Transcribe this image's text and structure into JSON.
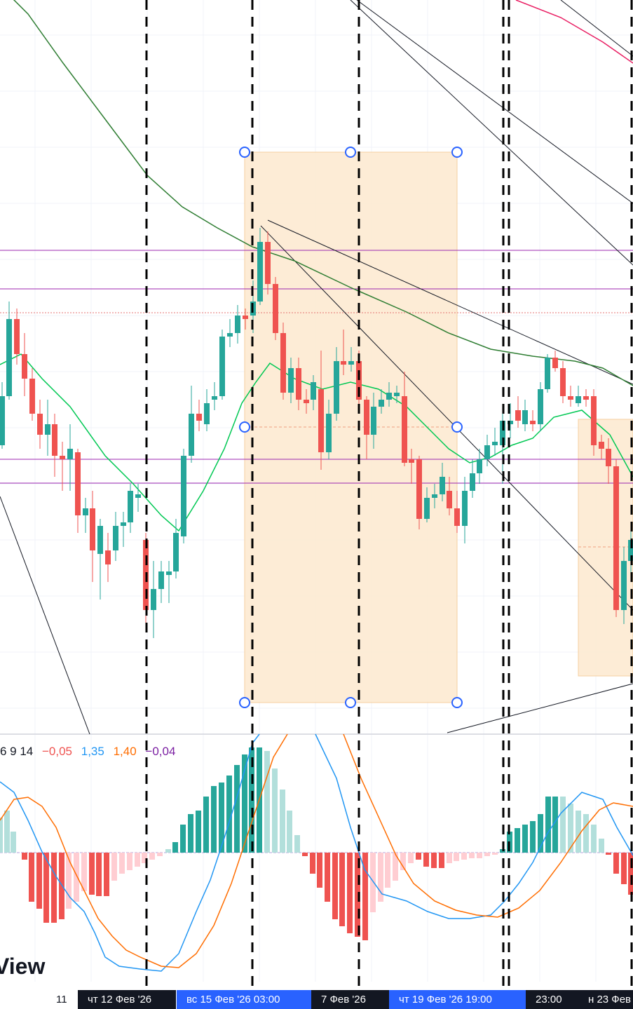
{
  "chart_data": {
    "type": "candlestick",
    "y_unit": "price (unlabelled axis, relative levels)",
    "candles": [
      [
        0.0,
        0.0,
        -0.2,
        0.0
      ],
      [
        0.0,
        0.0,
        -0.2,
        0.0
      ],
      [
        0.0,
        0.0,
        -0.2,
        0.0
      ],
      [
        0.0,
        0.0,
        0.0,
        0.0
      ]
    ],
    "macd": {
      "legend_params": "6 9 14",
      "values": [
        "−0,05",
        "1,35",
        "1,40",
        "−0,04"
      ],
      "colors": [
        "#ef5350",
        "#2196f3",
        "#ff6d00",
        "#7b1fa2"
      ]
    },
    "x_ticks": [
      {
        "label": "11",
        "style": "plain"
      },
      {
        "label": "чт 12 Фев '26",
        "style": "dark"
      },
      {
        "label": "вс 15 Фев '26   03:00",
        "style": "blue"
      },
      {
        "label": "7 Фев '26",
        "style": "dark"
      },
      {
        "label": "чт 19 Фев '26   19:00",
        "style": "blue"
      },
      {
        "label": "23:00",
        "style": "dark"
      },
      {
        "label": "н 23 Фев",
        "style": "dark"
      }
    ],
    "watermark": "View",
    "colors": {
      "bull": "#26a69a",
      "bear": "#ef5350",
      "ma_fast": "#00c853",
      "ma_slow": "#2e7d32",
      "level_lines": "#9c27b0",
      "zone_fill": "#fde9cf",
      "macd_line": "#2196f3",
      "signal_line": "#ff6d00"
    }
  }
}
